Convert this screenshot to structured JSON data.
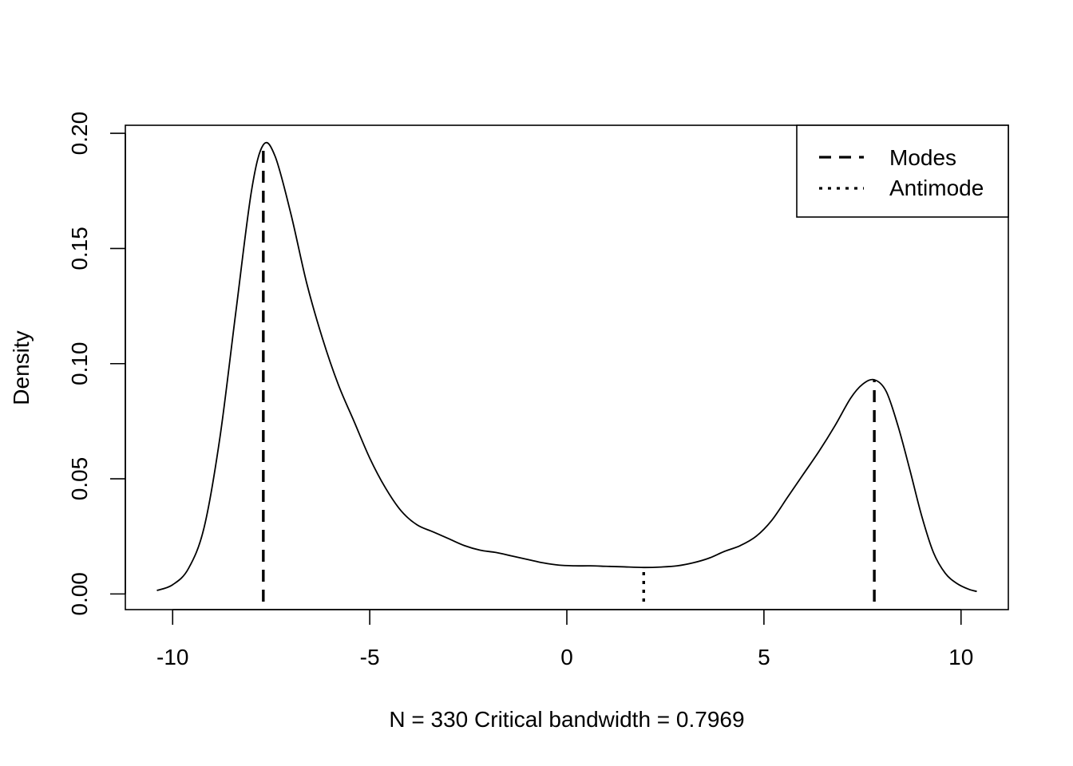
{
  "chart_data": {
    "type": "line",
    "title": "",
    "xlabel": "N =  330  Critical bandwidth =  0.7969",
    "ylabel": "Density",
    "xlim": [
      -11.2,
      11.2
    ],
    "ylim": [
      -0.0068,
      0.2035
    ],
    "xticks": [
      -10,
      -5,
      0,
      5,
      10
    ],
    "xtick_labels": [
      "-10",
      "-5",
      "0",
      "5",
      "10"
    ],
    "yticks": [
      0,
      0.05,
      0.1,
      0.15,
      0.2
    ],
    "ytick_labels": [
      "0.00",
      "0.05",
      "0.10",
      "0.15",
      "0.20"
    ],
    "grid": false,
    "legend_position": "top-right",
    "series": [
      {
        "style": "solid",
        "x": [
          -10.4,
          -10.0,
          -9.6,
          -9.2,
          -8.8,
          -8.4,
          -8.0,
          -7.7,
          -7.4,
          -7.0,
          -6.6,
          -6.2,
          -5.8,
          -5.4,
          -5.0,
          -4.6,
          -4.2,
          -3.8,
          -3.4,
          -3.0,
          -2.6,
          -2.2,
          -1.8,
          -1.4,
          -1.0,
          -0.6,
          -0.2,
          0.2,
          0.6,
          1.0,
          1.4,
          1.95,
          2.4,
          2.8,
          3.2,
          3.6,
          4.0,
          4.4,
          4.8,
          5.2,
          5.6,
          6.0,
          6.4,
          6.8,
          7.2,
          7.5,
          7.8,
          8.1,
          8.4,
          8.7,
          9.0,
          9.3,
          9.6,
          9.9,
          10.2,
          10.4
        ],
        "y": [
          0.0015,
          0.004,
          0.011,
          0.029,
          0.068,
          0.122,
          0.175,
          0.195,
          0.19,
          0.165,
          0.135,
          0.111,
          0.091,
          0.075,
          0.059,
          0.046,
          0.036,
          0.03,
          0.027,
          0.024,
          0.021,
          0.019,
          0.018,
          0.0165,
          0.015,
          0.0135,
          0.0125,
          0.0122,
          0.0122,
          0.012,
          0.0118,
          0.0115,
          0.0117,
          0.0122,
          0.0135,
          0.0155,
          0.0185,
          0.021,
          0.025,
          0.032,
          0.042,
          0.052,
          0.062,
          0.073,
          0.085,
          0.091,
          0.093,
          0.088,
          0.073,
          0.054,
          0.034,
          0.018,
          0.009,
          0.0045,
          0.002,
          0.0011
        ]
      }
    ],
    "vertical_lines": [
      {
        "type": "mode",
        "x": -7.7,
        "y": 0.195,
        "style": "dashed"
      },
      {
        "type": "mode",
        "x": 7.8,
        "y": 0.093,
        "style": "dashed"
      },
      {
        "type": "antimode",
        "x": 1.95,
        "y": 0.0115,
        "style": "dotted"
      }
    ],
    "legend": [
      {
        "label": "Modes",
        "style": "dashed"
      },
      {
        "label": "Antimode",
        "style": "dotted"
      }
    ]
  }
}
